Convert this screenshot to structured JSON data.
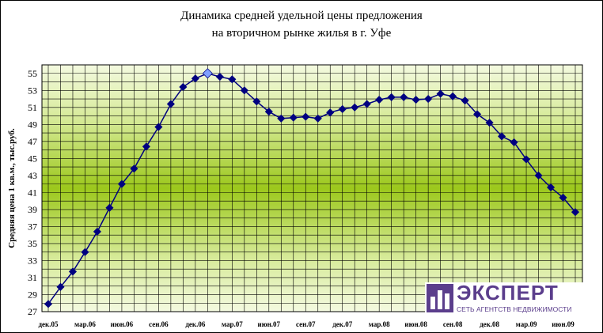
{
  "chart_data": {
    "type": "line",
    "title": [
      "Динамика средней удельной цены предложения",
      "на вторичном рынке жилья в г. Уфе"
    ],
    "ylabel": "Средняя цена 1 кв.м., тыс.руб.",
    "xlabel": "",
    "ylim": [
      27,
      56
    ],
    "yticks": [
      27,
      29,
      31,
      33,
      35,
      37,
      39,
      41,
      43,
      45,
      47,
      49,
      51,
      53,
      55
    ],
    "grid": true,
    "x_tick_labels": [
      "дек.05",
      "мар.06",
      "июн.06",
      "сен.06",
      "дек.06",
      "мар.07",
      "июн.07",
      "сен.07",
      "дек.07",
      "мар.08",
      "июн.08",
      "сен.08",
      "дек.08",
      "мар.09",
      "июн.09"
    ],
    "series": [
      {
        "values": [
          27.9,
          29.9,
          31.7,
          34.0,
          36.4,
          39.2,
          42.0,
          43.8,
          46.4,
          48.7,
          51.4,
          53.4,
          54.4,
          55.0,
          54.6,
          54.3,
          53.0,
          51.7,
          50.5,
          49.7,
          49.8,
          49.9,
          49.7,
          50.4,
          50.8,
          51.0,
          51.4,
          51.9,
          52.2,
          52.2,
          51.9,
          52.0,
          52.6,
          52.3,
          51.8,
          50.2,
          49.2,
          47.6,
          46.9,
          44.9,
          43.0,
          41.6,
          40.4,
          38.7
        ],
        "color": "#000080",
        "highlight_index": 13,
        "highlight_color": "#7f9fff"
      }
    ]
  },
  "logo": {
    "word": "ЭКСПЕРТ",
    "tagline": "СЕТЬ АГЕНТСТВ НЕДВИЖИМОСТИ"
  }
}
